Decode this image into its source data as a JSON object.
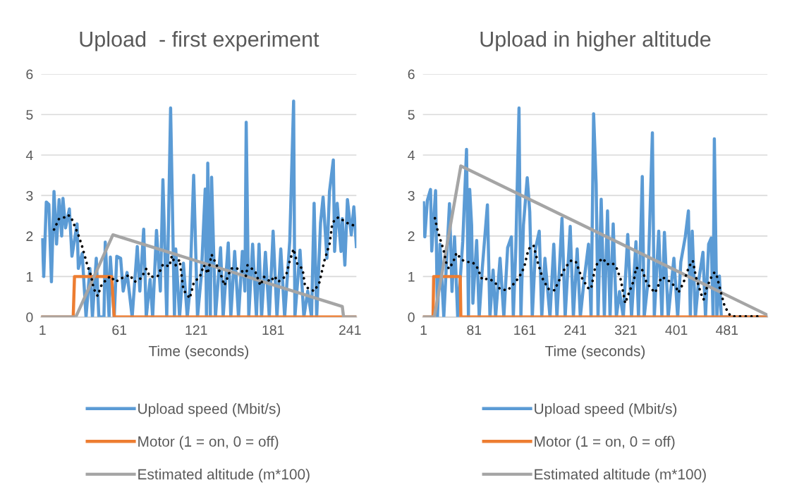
{
  "chart_data": [
    {
      "type": "line",
      "title": "Upload  - first experiment",
      "xlabel": "Time (seconds)",
      "xlim": [
        0,
        246
      ],
      "xticks": [
        1,
        61,
        121,
        181,
        241
      ],
      "ylim": [
        0,
        6
      ],
      "yticks": [
        0,
        1,
        2,
        3,
        4,
        5,
        6
      ],
      "grid": "y",
      "legend": "bottom",
      "series": [
        {
          "name": "Upload speed (Mbit/s)",
          "color": "#5b9bd5",
          "x": [
            1,
            2,
            4,
            6,
            8,
            10,
            12,
            14,
            16,
            17,
            19,
            22,
            24,
            28,
            29,
            32,
            35,
            38,
            40,
            43,
            45,
            49,
            50,
            53,
            54,
            57,
            59,
            62,
            64,
            67,
            71,
            75,
            77,
            80,
            82,
            85,
            87,
            90,
            93,
            95,
            98,
            101,
            104,
            105,
            108,
            111,
            114,
            116,
            119,
            122,
            125,
            128,
            129,
            130,
            132,
            133,
            136,
            140,
            142,
            146,
            148,
            151,
            154,
            157,
            159,
            160,
            162,
            165,
            168,
            170,
            172,
            175,
            178,
            181,
            184,
            187,
            190,
            194,
            197,
            198,
            202,
            205,
            208,
            211,
            213,
            215,
            218,
            220,
            223,
            225,
            228,
            229,
            231,
            234,
            235,
            237,
            239,
            242,
            244,
            246
          ],
          "values": [
            1.91,
            1.0,
            2.84,
            2.78,
            0.87,
            3.1,
            1.8,
            2.9,
            2.0,
            2.93,
            2.2,
            2.67,
            1.5,
            2.3,
            1.2,
            1.57,
            0,
            1.2,
            0,
            1.45,
            0,
            0,
            1.85,
            0,
            1.48,
            0,
            1.5,
            1.45,
            0.64,
            1.1,
            0,
            1.74,
            0.64,
            2.17,
            0,
            0.93,
            0,
            2.14,
            0.64,
            3.39,
            0,
            5.16,
            0,
            1.68,
            0,
            1.33,
            0,
            0.64,
            3.5,
            0,
            1.04,
            3.16,
            0,
            3.8,
            0,
            3.45,
            0,
            1.71,
            0,
            1.83,
            0,
            1.62,
            0,
            1.62,
            0.64,
            4.81,
            0,
            1.8,
            0,
            1.8,
            0,
            1.6,
            0,
            2.12,
            0,
            1.68,
            0,
            1.88,
            5.33,
            0,
            1.65,
            0,
            0.64,
            0,
            2.81,
            0,
            2.32,
            2.96,
            1.45,
            3.1,
            3.88,
            1.62,
            2.81,
            1.62,
            2.43,
            1.28,
            2.9,
            2.03,
            2.72,
            1.74
          ]
        },
        {
          "name": "Motor (1 = on, 0 = off)",
          "color": "#ed7d31",
          "x": [
            1,
            25,
            26,
            55,
            57,
            246
          ],
          "values": [
            0,
            0,
            1,
            1,
            0,
            0
          ]
        },
        {
          "name": "Estimated altitude (m*100)",
          "color": "#a5a5a5",
          "x": [
            1,
            27,
            56,
            235,
            236,
            246
          ],
          "values": [
            0,
            0,
            2.03,
            0.26,
            0,
            0
          ]
        },
        {
          "color": "#000000",
          "line_style": "dotted",
          "x": [
            10,
            14,
            18,
            20,
            23,
            26,
            29,
            32,
            36,
            39,
            41,
            44,
            47,
            51,
            54,
            58,
            63,
            69,
            73,
            78,
            82,
            85,
            91,
            95,
            100,
            102,
            105,
            108,
            111,
            116,
            119,
            124,
            127,
            130,
            133,
            137,
            140,
            143,
            148,
            151,
            156,
            160,
            161,
            167,
            171,
            174,
            179,
            182,
            185,
            191,
            194,
            197,
            200,
            204,
            206,
            213,
            217,
            221,
            225,
            227,
            229,
            232,
            236,
            239,
            244
          ],
          "values": [
            2.16,
            2.43,
            2.46,
            2.52,
            2.49,
            2.26,
            2.03,
            1.74,
            1.28,
            1.01,
            0.7,
            0.52,
            0.78,
            0.93,
            1.01,
            0.87,
            0.96,
            1.04,
            0.87,
            0.96,
            1.19,
            0.99,
            1.01,
            1.3,
            1.25,
            1.51,
            1.28,
            1.42,
            0.67,
            0.46,
            0.84,
            1.01,
            1.28,
            1.07,
            1.54,
            1.28,
            1.07,
            0.78,
            1.19,
            1.22,
            1.16,
            1.01,
            1.28,
            1.13,
            0.78,
            0.99,
            0.87,
            1.01,
            0.87,
            1.01,
            1.39,
            1.68,
            1.3,
            1.19,
            0.75,
            0.64,
            0.84,
            1.39,
            1.8,
            2.26,
            2.41,
            2.46,
            2.38,
            2.32,
            2.26
          ]
        }
      ]
    },
    {
      "type": "line",
      "title": "Upload in higher altitude",
      "xlabel": "Time (seconds)",
      "xlim": [
        0,
        545
      ],
      "xticks": [
        1,
        81,
        161,
        241,
        321,
        401,
        481
      ],
      "ylim": [
        0,
        6
      ],
      "yticks": [
        0,
        1,
        2,
        3,
        4,
        5,
        6
      ],
      "grid": "y",
      "legend": "bottom",
      "series": [
        {
          "name": "Upload speed (Mbit/s)",
          "color": "#5b9bd5",
          "x": [
            1,
            3,
            7,
            12,
            14,
            20,
            23,
            27,
            33,
            42,
            46,
            50,
            55,
            63,
            69,
            72,
            74,
            77,
            79,
            85,
            89,
            94,
            102,
            106,
            111,
            115,
            122,
            128,
            134,
            140,
            143,
            147,
            152,
            155,
            159,
            165,
            169,
            173,
            178,
            184,
            188,
            193,
            201,
            207,
            212,
            220,
            225,
            233,
            238,
            244,
            249,
            255,
            262,
            266,
            270,
            274,
            277,
            282,
            287,
            292,
            296,
            301,
            306,
            311,
            317,
            324,
            330,
            337,
            341,
            347,
            350,
            356,
            363,
            366,
            373,
            378,
            382,
            388,
            397,
            403,
            408,
            415,
            420,
            423,
            426,
            431,
            436,
            443,
            447,
            452,
            456,
            459,
            461,
            465,
            469,
            472,
            545
          ],
          "values": [
            2.82,
            1.98,
            2.88,
            3.15,
            1.63,
            3.12,
            0,
            1.8,
            0,
            2.8,
            0.63,
            1.98,
            0,
            1.86,
            4.14,
            0,
            3.15,
            2.27,
            0.34,
            1.89,
            0,
            1.22,
            2.77,
            0,
            1.16,
            0,
            1.45,
            0,
            1.71,
            1.98,
            0,
            1.74,
            5.16,
            0,
            2.27,
            3.44,
            2.59,
            0,
            1.68,
            2.12,
            0,
            1.45,
            0,
            1.8,
            0,
            2.44,
            0,
            2.24,
            0,
            1.68,
            0,
            0.92,
            1.8,
            0,
            5.02,
            3.29,
            0,
            2.91,
            0,
            2.62,
            0,
            2.3,
            0,
            0.63,
            0,
            2.04,
            0,
            1.86,
            0,
            3.47,
            0,
            0.87,
            4.55,
            0,
            2.12,
            0,
            2.09,
            0,
            1.45,
            0,
            1.36,
            1.98,
            2.62,
            0,
            2.12,
            0,
            0.87,
            1.6,
            0,
            1.8,
            1.95,
            0,
            4.4,
            0,
            1.01,
            0,
            0
          ]
        },
        {
          "name": "Motor (1 = on, 0 = off)",
          "color": "#ed7d31",
          "x": [
            1,
            16,
            17,
            59,
            60,
            545
          ],
          "values": [
            0,
            0,
            1,
            1,
            0,
            0
          ]
        },
        {
          "name": "Estimated altitude (m*100)",
          "color": "#a5a5a5",
          "x": [
            1,
            18,
            60,
            545
          ],
          "values": [
            0,
            0,
            3.73,
            0.05
          ]
        },
        {
          "color": "#000000",
          "line_style": "dotted",
          "x": [
            19,
            23,
            28,
            33,
            37,
            41,
            48,
            53,
            61,
            68,
            78,
            85,
            94,
            104,
            113,
            122,
            134,
            143,
            152,
            160,
            167,
            175,
            182,
            190,
            199,
            208,
            216,
            225,
            235,
            242,
            251,
            261,
            266,
            272,
            277,
            285,
            291,
            300,
            307,
            313,
            320,
            326,
            334,
            337,
            347,
            354,
            362,
            367,
            371,
            377,
            384,
            391,
            401,
            404,
            412,
            421,
            427,
            432,
            440,
            444,
            449,
            455,
            461,
            464,
            472,
            477,
            483,
            487,
            498,
            533
          ],
          "values": [
            2.44,
            2.15,
            1.89,
            1.63,
            1.33,
            1.19,
            1.36,
            1.58,
            1.42,
            1.36,
            1.36,
            1.25,
            0.92,
            0.95,
            0.87,
            0.69,
            0.66,
            0.81,
            0.98,
            1.22,
            1.68,
            1.77,
            1.33,
            0.92,
            0.69,
            0.66,
            0.92,
            1.22,
            1.4,
            1.36,
            0.98,
            0.72,
            0.69,
            1.19,
            1.36,
            1.45,
            1.3,
            1.33,
            1.19,
            0.92,
            0.34,
            0.6,
            0.92,
            1.22,
            1.16,
            0.84,
            0.69,
            0.6,
            0.72,
            0.98,
            0.95,
            0.87,
            0.72,
            0.6,
            0.84,
            1.25,
            1.39,
            0.98,
            0.57,
            0.43,
            0.72,
            0.95,
            1.1,
            1.07,
            0.57,
            0.28,
            0.11,
            0.02,
            0.02,
            0.02
          ]
        }
      ]
    }
  ]
}
